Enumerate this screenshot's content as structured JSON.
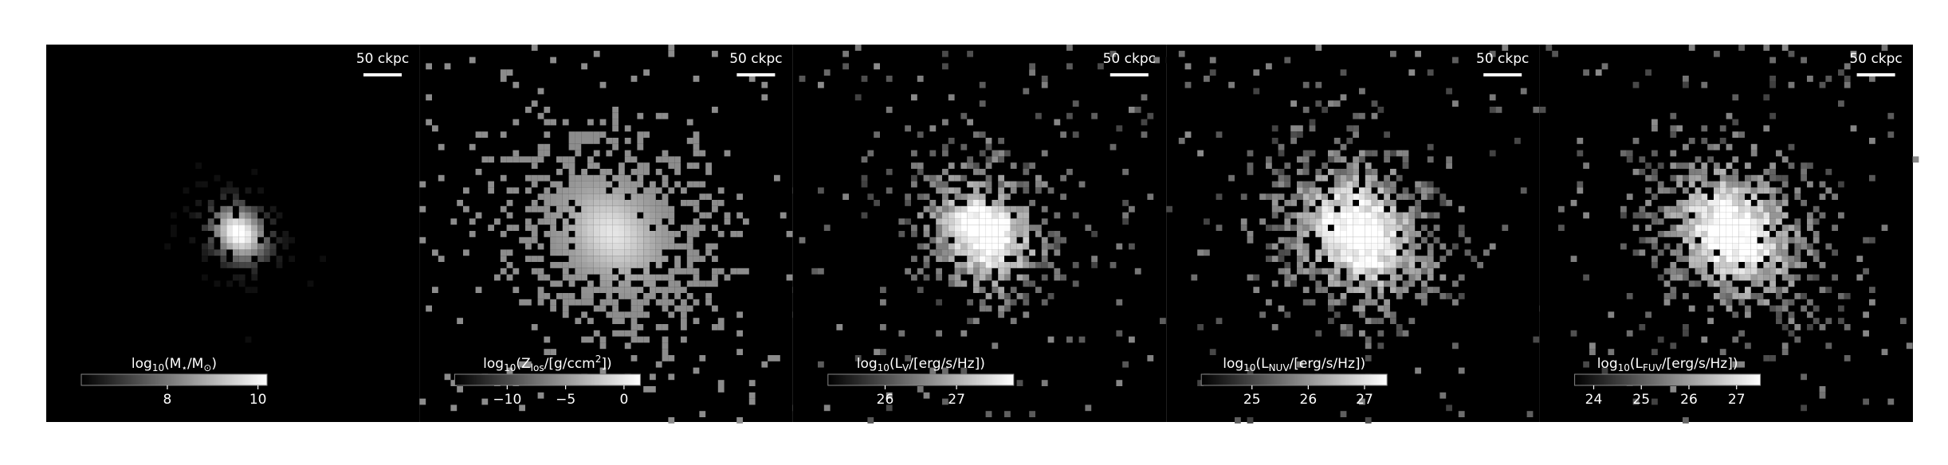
{
  "chart_data": [
    {
      "type": "image",
      "scale_label": "50 ckpc",
      "cmap": [
        "#000000",
        "#ffffff"
      ],
      "colorbar": {
        "label": [
          {
            "text": "log"
          },
          {
            "text": "10",
            "sub": true
          },
          {
            "text": "(M"
          },
          {
            "text": "⋆",
            "sub": true
          },
          {
            "text": "/M"
          },
          {
            "text": "⊙",
            "sub": true
          },
          {
            "text": ")"
          }
        ],
        "xlim": [
          6.1,
          10.2
        ],
        "xticks": [
          8,
          10
        ]
      }
    },
    {
      "type": "image",
      "scale_label": "50 ckpc",
      "cmap": [
        "#000000",
        "#ffffff"
      ],
      "colorbar": {
        "label": [
          {
            "text": "log"
          },
          {
            "text": "10",
            "sub": true
          },
          {
            "text": "(Z"
          },
          {
            "text": "los",
            "sub": true
          },
          {
            "text": "/[g/ccm"
          },
          {
            "text": "2",
            "sup": true
          },
          {
            "text": "])"
          }
        ],
        "xlim": [
          -14.5,
          1.4
        ],
        "xticks": [
          {
            "value": -10,
            "label": "−10"
          },
          {
            "value": -5,
            "label": "−5"
          },
          0
        ]
      }
    },
    {
      "type": "image",
      "scale_label": "50 ckpc",
      "cmap": [
        "#000000",
        "#ffffff"
      ],
      "colorbar": {
        "label": [
          {
            "text": "log"
          },
          {
            "text": "10",
            "sub": true
          },
          {
            "text": "(L"
          },
          {
            "text": "V",
            "sub": true
          },
          {
            "text": "/[erg/s/Hz])"
          }
        ],
        "xlim": [
          25.2,
          27.8
        ],
        "xticks": [
          26,
          27
        ]
      }
    },
    {
      "type": "image",
      "scale_label": "50 ckpc",
      "cmap": [
        "#000000",
        "#ffffff"
      ],
      "colorbar": {
        "label": [
          {
            "text": "log"
          },
          {
            "text": "10",
            "sub": true
          },
          {
            "text": "(L"
          },
          {
            "text": "NUV",
            "sub": true
          },
          {
            "text": "/[erg/s/Hz])"
          }
        ],
        "xlim": [
          24.1,
          27.4
        ],
        "xticks": [
          25,
          26,
          27
        ]
      }
    },
    {
      "type": "image",
      "scale_label": "50 ckpc",
      "cmap": [
        "#000000",
        "#ffffff"
      ],
      "colorbar": {
        "label": [
          {
            "text": "log"
          },
          {
            "text": "10",
            "sub": true
          },
          {
            "text": "(L"
          },
          {
            "text": "FUV",
            "sub": true
          },
          {
            "text": "/[erg/s/Hz])"
          }
        ],
        "xlim": [
          23.6,
          27.5
        ],
        "xticks": [
          24,
          25,
          26,
          27
        ]
      }
    }
  ]
}
